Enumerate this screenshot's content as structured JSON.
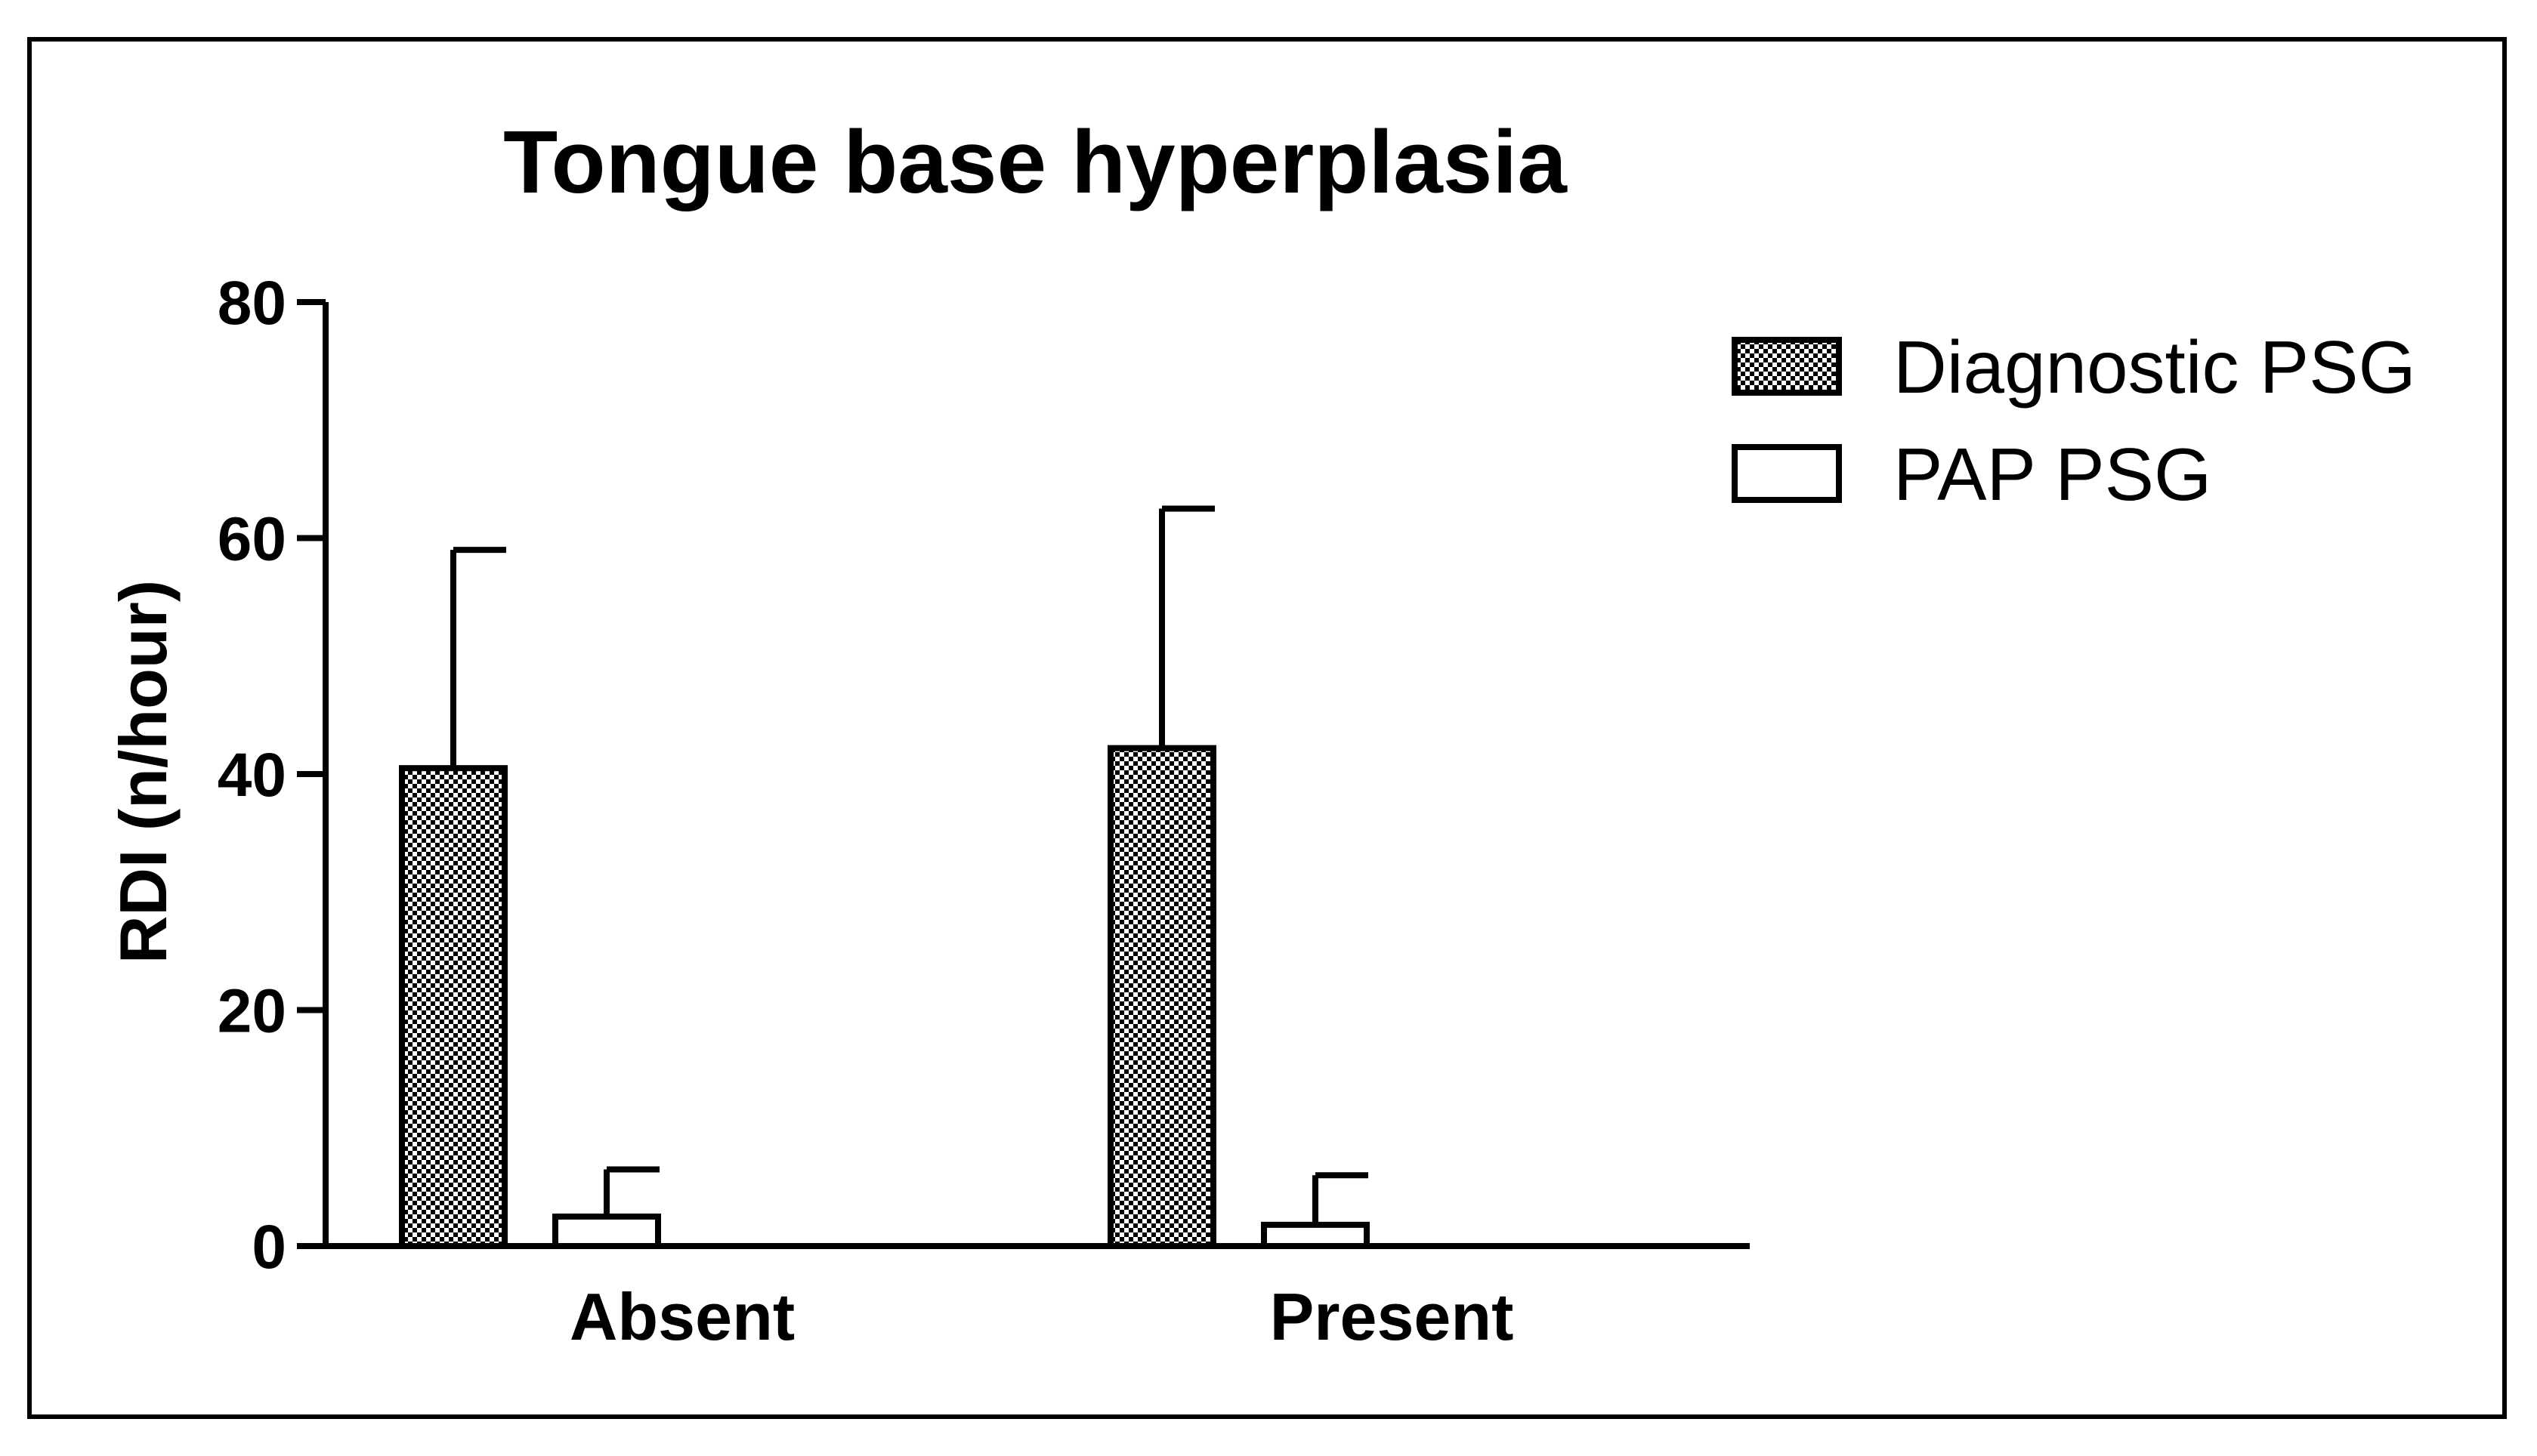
{
  "chart_data": {
    "type": "bar",
    "title": "Tongue base hyperplasia",
    "xlabel": "",
    "ylabel": "RDI (n/hour)",
    "categories": [
      "Absent",
      "Present"
    ],
    "ylim": [
      0,
      80
    ],
    "yticks": [
      "0",
      "20",
      "40",
      "60",
      "80"
    ],
    "grid": false,
    "legend_position": "top-right",
    "series": [
      {
        "name": "Diagnostic PSG",
        "values": [
          40.5,
          42.2
        ],
        "error_upper": [
          59.0,
          62.5
        ],
        "fill": "checkered",
        "color": "#000000"
      },
      {
        "name": "PAP PSG",
        "values": [
          2.5,
          1.8
        ],
        "error_upper": [
          6.5,
          6.0
        ],
        "fill": "none",
        "color": "#000000"
      }
    ]
  }
}
